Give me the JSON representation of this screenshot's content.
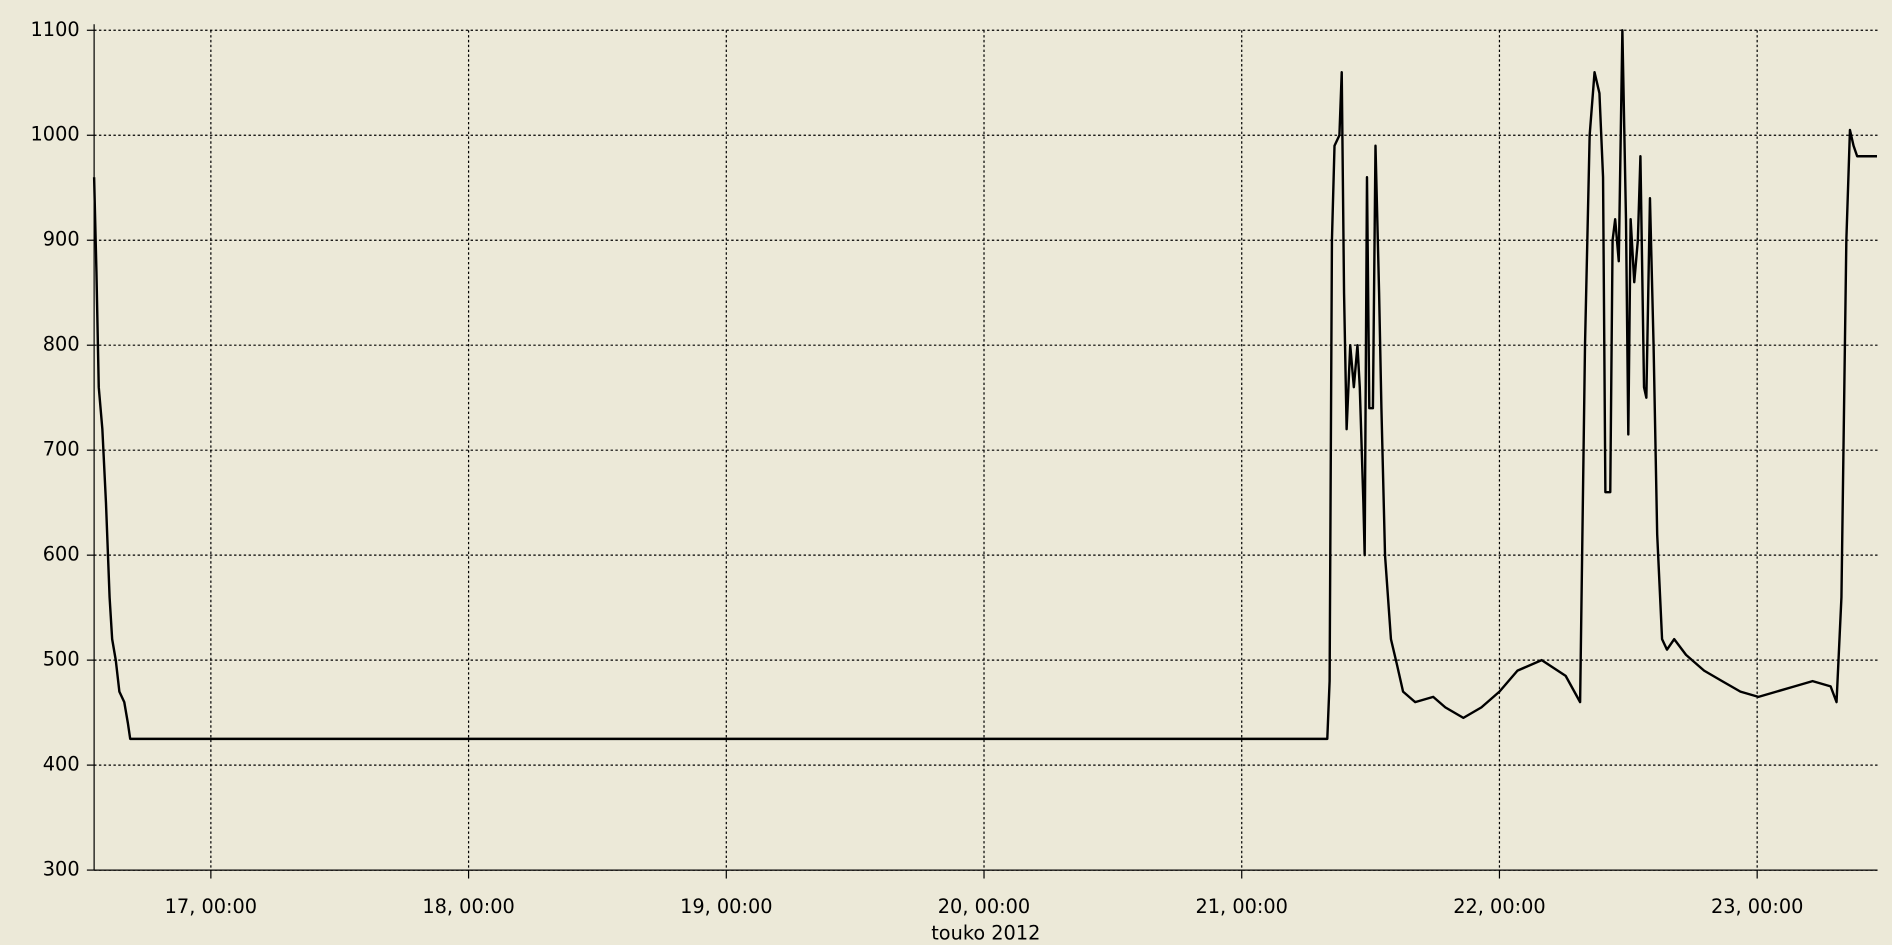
{
  "chart_data": {
    "type": "line",
    "xlabel": "touko 2012",
    "x": [
      16.547,
      16.556,
      16.565,
      16.579,
      16.593,
      16.607,
      16.617,
      16.631,
      16.645,
      16.664,
      16.678,
      16.687,
      21.332,
      21.341,
      21.35,
      21.36,
      21.379,
      21.388,
      21.397,
      21.407,
      21.421,
      21.435,
      21.449,
      21.458,
      21.472,
      21.477,
      21.486,
      21.495,
      21.509,
      21.519,
      21.533,
      21.542,
      21.556,
      21.579,
      21.603,
      21.626,
      21.673,
      21.743,
      21.79,
      21.86,
      21.93,
      22.0,
      22.07,
      22.164,
      22.257,
      22.313,
      22.332,
      22.35,
      22.369,
      22.388,
      22.402,
      22.411,
      22.43,
      22.439,
      22.449,
      22.463,
      22.477,
      22.491,
      22.5,
      22.509,
      22.523,
      22.537,
      22.547,
      22.561,
      22.57,
      22.584,
      22.598,
      22.612,
      22.631,
      22.65,
      22.678,
      22.724,
      22.794,
      22.864,
      22.935,
      23.005,
      23.075,
      23.145,
      23.215,
      23.285,
      23.308,
      23.327,
      23.346,
      23.36,
      23.374,
      23.388,
      23.465
    ],
    "series": [
      {
        "color": "#000000",
        "values": [
          960,
          870,
          760,
          720,
          650,
          560,
          520,
          500,
          470,
          460,
          440,
          425,
          425,
          480,
          900,
          990,
          1000,
          1060,
          850,
          720,
          800,
          760,
          800,
          760,
          650,
          600,
          960,
          740,
          740,
          990,
          850,
          740,
          600,
          520,
          495,
          470,
          460,
          465,
          455,
          445,
          455,
          470,
          490,
          500,
          485,
          460,
          800,
          1000,
          1060,
          1040,
          960,
          660,
          660,
          900,
          920,
          880,
          1100,
          920,
          715,
          920,
          860,
          900,
          980,
          760,
          750,
          940,
          800,
          620,
          520,
          510,
          520,
          505,
          490,
          480,
          470,
          465,
          470,
          475,
          480,
          475,
          460,
          560,
          900,
          1005,
          990,
          980,
          980
        ]
      }
    ],
    "xlim": [
      16.547,
      23.467
    ],
    "xticks": [
      {
        "value": 17,
        "label": "17, 00:00"
      },
      {
        "value": 18,
        "label": "18, 00:00"
      },
      {
        "value": 19,
        "label": "19, 00:00"
      },
      {
        "value": 20,
        "label": "20, 00:00"
      },
      {
        "value": 21,
        "label": "21, 00:00"
      },
      {
        "value": 22,
        "label": "22, 00:00"
      },
      {
        "value": 23,
        "label": "23, 00:00"
      }
    ],
    "ylim": [
      300,
      1100
    ],
    "yticks": [
      300,
      400,
      500,
      600,
      700,
      800,
      900,
      1000,
      1100
    ],
    "grid": true
  }
}
